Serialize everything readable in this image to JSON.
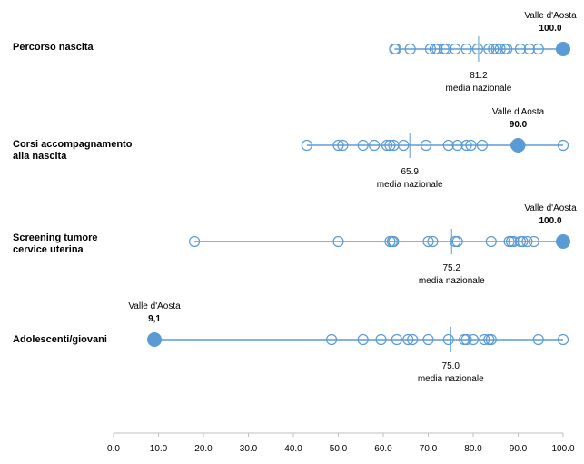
{
  "chart_data": {
    "type": "scatter",
    "xlim": [
      0,
      100
    ],
    "x_ticks": [
      "0.0",
      "10.0",
      "20.0",
      "30.0",
      "40.0",
      "50.0",
      "60.0",
      "70.0",
      "80.0",
      "90.0",
      "100.0"
    ],
    "x_tick_values": [
      0,
      10,
      20,
      30,
      40,
      50,
      60,
      70,
      80,
      90,
      100
    ],
    "grid": false,
    "point_color": "#5b9bd5",
    "rows": [
      {
        "id": "percorso",
        "label_lines": [
          "Percorso nascita"
        ],
        "region_values": [
          62.5,
          62.8,
          66.0,
          70.5,
          71.5,
          72.0,
          73.5,
          74.0,
          76.0,
          78.5,
          81.0,
          83.5,
          84.5,
          85.2,
          86.0,
          87.0,
          87.5,
          90.5,
          92.5,
          94.5
        ],
        "highlight": {
          "value": 100.0,
          "label_name": "Valle d'Aosta",
          "label_value": "100.0"
        },
        "national": {
          "value": 81.2,
          "value_text": "81.2",
          "label": "media nazionale"
        }
      },
      {
        "id": "corsi",
        "label_lines": [
          "Corsi accompagnamento",
          "alla nascita"
        ],
        "region_values": [
          43.0,
          50.0,
          51.0,
          55.5,
          58.0,
          60.8,
          61.5,
          62.3,
          64.5,
          69.5,
          74.5,
          76.5,
          78.5,
          79.5,
          82.0,
          89.5,
          100.0
        ],
        "highlight": {
          "value": 90.0,
          "label_name": "Valle d'Aosta",
          "label_value": "90.0"
        },
        "national": {
          "value": 65.9,
          "value_text": "65.9",
          "label": "media nazionale"
        }
      },
      {
        "id": "screening",
        "label_lines": [
          "Screening tumore",
          "cervice uterina"
        ],
        "region_values": [
          18.0,
          50.0,
          61.5,
          62.0,
          62.3,
          70.0,
          71.0,
          76.0,
          76.5,
          84.0,
          88.0,
          88.5,
          89.0,
          90.5,
          91.0,
          92.0,
          93.5
        ],
        "highlight": {
          "value": 100.0,
          "label_name": "Valle d'Aosta",
          "label_value": "100.0"
        },
        "national": {
          "value": 75.2,
          "value_text": "75.2",
          "label": "media nazionale"
        }
      },
      {
        "id": "adolescenti",
        "label_lines": [
          "Adolescenti/giovani"
        ],
        "region_values": [
          48.5,
          55.5,
          59.5,
          63.0,
          65.5,
          66.5,
          70.0,
          74.5,
          78.0,
          78.5,
          80.0,
          82.5,
          83.5,
          84.0,
          94.5,
          100.0
        ],
        "highlight": {
          "value": 9.1,
          "label_name": "Valle d'Aosta",
          "label_value": "9,1"
        },
        "national": {
          "value": 75.0,
          "value_text": "75.0",
          "label": "media nazionale"
        }
      }
    ]
  }
}
